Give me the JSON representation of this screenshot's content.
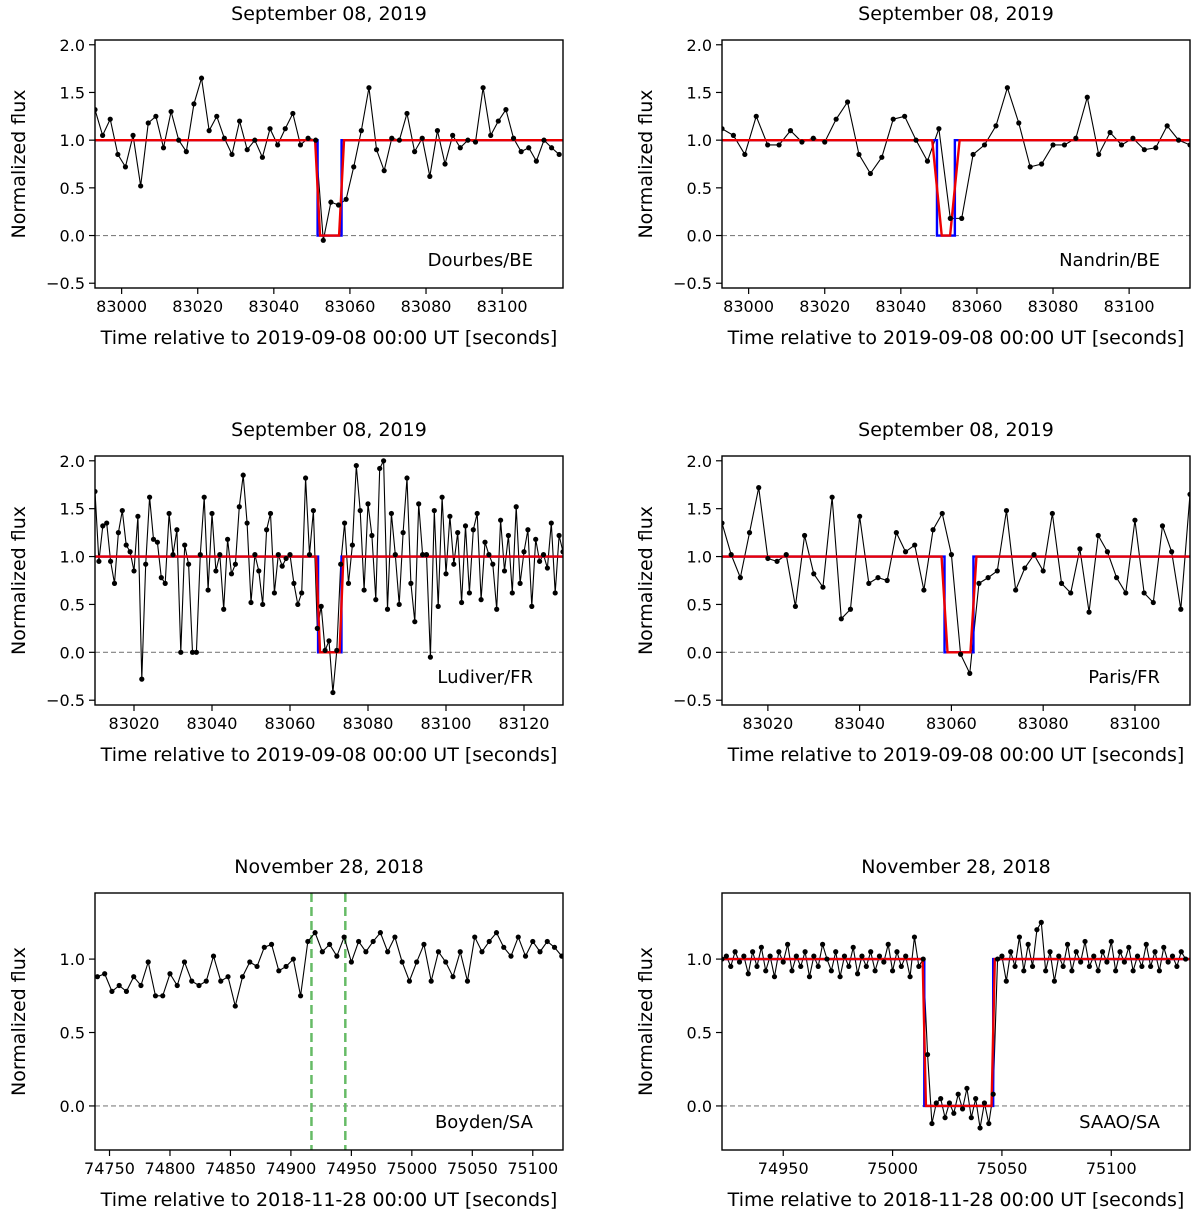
{
  "chart_data": [
    {
      "type": "line",
      "title": "September 08, 2019",
      "xlabel": "Time relative to 2019-09-08 00:00 UT [seconds]",
      "ylabel": "Normalized flux",
      "site": "Dourbes/BE",
      "xlim": [
        82993,
        83116
      ],
      "ylim": [
        -0.55,
        2.05
      ],
      "xticks": [
        83000,
        83020,
        83040,
        83060,
        83080,
        83100
      ],
      "yticks": [
        -0.5,
        0.0,
        0.5,
        1.0,
        1.5,
        2.0
      ],
      "ytick_format": "1",
      "event": [
        83051.5,
        83057.8
      ],
      "model_ingress": 1.3,
      "observations": {
        "x": [
          82993,
          82995,
          82997,
          82999,
          83001,
          83003,
          83005,
          83007,
          83009,
          83011,
          83013,
          83015,
          83017,
          83019,
          83021,
          83023,
          83025,
          83027,
          83029,
          83031,
          83033,
          83035,
          83037,
          83039,
          83041,
          83043,
          83045,
          83047,
          83049,
          83051,
          83053,
          83055,
          83057,
          83059,
          83061,
          83063,
          83065,
          83067,
          83069,
          83071,
          83073,
          83075,
          83077,
          83079,
          83081,
          83083,
          83085,
          83087,
          83089,
          83091,
          83093,
          83095,
          83097,
          83099,
          83101,
          83103,
          83105,
          83107,
          83109,
          83111,
          83113,
          83115
        ],
        "y": [
          1.32,
          1.05,
          1.22,
          0.85,
          0.72,
          1.05,
          0.52,
          1.18,
          1.25,
          0.92,
          1.3,
          1.0,
          0.88,
          1.38,
          1.65,
          1.1,
          1.25,
          1.02,
          0.85,
          1.2,
          0.9,
          1.0,
          0.82,
          1.12,
          0.95,
          1.12,
          1.28,
          0.95,
          1.02,
          1.0,
          -0.05,
          0.35,
          0.32,
          0.38,
          0.72,
          1.1,
          1.55,
          0.9,
          0.68,
          1.02,
          1.0,
          1.28,
          0.88,
          1.02,
          0.62,
          1.1,
          0.75,
          1.05,
          0.92,
          1.0,
          0.98,
          1.55,
          1.05,
          1.2,
          1.32,
          1.02,
          0.88,
          0.92,
          0.78,
          1.0,
          0.92,
          0.85
        ]
      }
    },
    {
      "type": "line",
      "title": "September 08, 2019",
      "xlabel": "Time relative to 2019-09-08 00:00 UT [seconds]",
      "ylabel": "Normalized flux",
      "site": "Nandrin/BE",
      "xlim": [
        82993,
        83116
      ],
      "ylim": [
        -0.55,
        2.05
      ],
      "xticks": [
        83000,
        83020,
        83040,
        83060,
        83080,
        83100
      ],
      "yticks": [
        -0.5,
        0.0,
        0.5,
        1.0,
        1.5,
        2.0
      ],
      "ytick_format": "1",
      "event": [
        83049.5,
        83054.2
      ],
      "model_ingress": 2.5,
      "observations": {
        "x": [
          82993,
          82996,
          82999,
          83002,
          83005,
          83008,
          83011,
          83014,
          83017,
          83020,
          83023,
          83026,
          83029,
          83032,
          83035,
          83038,
          83041,
          83044,
          83047,
          83050,
          83053,
          83056,
          83059,
          83062,
          83065,
          83068,
          83071,
          83074,
          83077,
          83080,
          83083,
          83086,
          83089,
          83092,
          83095,
          83098,
          83101,
          83104,
          83107,
          83110,
          83113,
          83116
        ],
        "y": [
          1.12,
          1.05,
          0.85,
          1.25,
          0.95,
          0.95,
          1.1,
          0.98,
          1.02,
          0.98,
          1.22,
          1.4,
          0.85,
          0.65,
          0.82,
          1.22,
          1.25,
          1.0,
          0.78,
          1.12,
          0.18,
          0.18,
          0.85,
          0.95,
          1.15,
          1.55,
          1.18,
          0.72,
          0.75,
          0.95,
          0.95,
          1.02,
          1.45,
          0.85,
          1.08,
          0.95,
          1.02,
          0.9,
          0.92,
          1.15,
          1.0,
          0.95
        ]
      }
    },
    {
      "type": "line",
      "title": "September 08, 2019",
      "xlabel": "Time relative to 2019-09-08 00:00 UT [seconds]",
      "ylabel": "Normalized flux",
      "site": "Ludiver/FR",
      "xlim": [
        83010,
        83130
      ],
      "ylim": [
        -0.55,
        2.05
      ],
      "xticks": [
        83020,
        83040,
        83060,
        83080,
        83100,
        83120
      ],
      "yticks": [
        -0.5,
        0.0,
        0.5,
        1.0,
        1.5,
        2.0
      ],
      "ytick_format": "1",
      "event": [
        83067.2,
        83073.2
      ],
      "model_ingress": 1.0,
      "observations": {
        "x": [
          83010,
          83011,
          83012,
          83013,
          83014,
          83015,
          83016,
          83017,
          83018,
          83019,
          83020,
          83021,
          83022,
          83023,
          83024,
          83025,
          83026,
          83027,
          83028,
          83029,
          83030,
          83031,
          83032,
          83033,
          83034,
          83035,
          83036,
          83037,
          83038,
          83039,
          83040,
          83041,
          83042,
          83043,
          83044,
          83045,
          83046,
          83047,
          83048,
          83049,
          83050,
          83051,
          83052,
          83053,
          83054,
          83055,
          83056,
          83057,
          83058,
          83059,
          83060,
          83061,
          83062,
          83063,
          83064,
          83065,
          83066,
          83067,
          83068,
          83069,
          83070,
          83071,
          83072,
          83073,
          83074,
          83075,
          83076,
          83077,
          83078,
          83079,
          83080,
          83081,
          83082,
          83083,
          83084,
          83085,
          83086,
          83087,
          83088,
          83089,
          83090,
          83091,
          83092,
          83093,
          83094,
          83095,
          83096,
          83097,
          83098,
          83099,
          83100,
          83101,
          83102,
          83103,
          83104,
          83105,
          83106,
          83107,
          83108,
          83109,
          83110,
          83111,
          83112,
          83113,
          83114,
          83115,
          83116,
          83117,
          83118,
          83119,
          83120,
          83121,
          83122,
          83123,
          83124,
          83125,
          83126,
          83127,
          83128,
          83129,
          83130
        ],
        "y": [
          1.68,
          0.95,
          1.32,
          1.35,
          0.95,
          0.72,
          1.25,
          1.48,
          1.12,
          1.05,
          0.85,
          1.42,
          -0.28,
          0.92,
          1.62,
          1.18,
          1.15,
          0.78,
          0.72,
          1.45,
          1.02,
          1.28,
          0.0,
          1.12,
          0.92,
          0.0,
          0.0,
          1.02,
          1.62,
          0.65,
          1.45,
          0.85,
          1.02,
          0.45,
          1.18,
          0.82,
          0.92,
          1.52,
          1.85,
          1.35,
          0.52,
          1.02,
          0.85,
          0.5,
          1.28,
          1.45,
          0.62,
          1.02,
          0.9,
          0.98,
          1.02,
          0.72,
          0.5,
          0.62,
          1.82,
          1.02,
          1.48,
          0.25,
          0.48,
          0.02,
          0.12,
          -0.42,
          0.02,
          0.92,
          1.35,
          0.72,
          1.12,
          1.95,
          1.48,
          0.65,
          1.55,
          1.22,
          0.55,
          1.92,
          2.0,
          0.45,
          1.45,
          1.02,
          0.5,
          1.25,
          1.82,
          0.72,
          0.32,
          1.55,
          1.02,
          1.02,
          -0.05,
          1.48,
          0.48,
          1.62,
          0.82,
          1.42,
          0.92,
          1.25,
          0.52,
          1.32,
          0.62,
          1.28,
          1.45,
          0.55,
          1.15,
          1.02,
          0.92,
          0.45,
          1.38,
          0.85,
          1.22,
          0.62,
          1.52,
          0.72,
          1.05,
          1.28,
          0.48,
          1.18,
          0.95,
          1.02,
          0.88,
          1.35,
          0.62,
          1.22,
          1.05
        ]
      }
    },
    {
      "type": "line",
      "title": "September 08, 2019",
      "xlabel": "Time relative to 2019-09-08 00:00 UT [seconds]",
      "ylabel": "Normalized flux",
      "site": "Paris/FR",
      "xlim": [
        83010,
        83112
      ],
      "ylim": [
        -0.55,
        2.05
      ],
      "xticks": [
        83020,
        83040,
        83060,
        83080,
        83100
      ],
      "yticks": [
        -0.5,
        0.0,
        0.5,
        1.0,
        1.5,
        2.0
      ],
      "ytick_format": "1",
      "event": [
        83058.5,
        83064.8
      ],
      "model_ingress": 1.3,
      "observations": {
        "x": [
          83010,
          83012,
          83014,
          83016,
          83018,
          83020,
          83022,
          83024,
          83026,
          83028,
          83030,
          83032,
          83034,
          83036,
          83038,
          83040,
          83042,
          83044,
          83046,
          83048,
          83050,
          83052,
          83054,
          83056,
          83058,
          83060,
          83062,
          83064,
          83066,
          83068,
          83070,
          83072,
          83074,
          83076,
          83078,
          83080,
          83082,
          83084,
          83086,
          83088,
          83090,
          83092,
          83094,
          83096,
          83098,
          83100,
          83102,
          83104,
          83106,
          83108,
          83110,
          83112
        ],
        "y": [
          1.35,
          1.02,
          0.78,
          1.25,
          1.72,
          0.98,
          0.95,
          1.02,
          0.48,
          1.22,
          0.82,
          0.68,
          1.62,
          0.35,
          0.45,
          1.42,
          0.72,
          0.78,
          0.75,
          1.25,
          1.05,
          1.12,
          0.65,
          1.28,
          1.45,
          1.02,
          -0.02,
          -0.22,
          0.72,
          0.78,
          0.85,
          1.48,
          0.65,
          0.88,
          1.02,
          0.85,
          1.45,
          0.72,
          0.62,
          1.08,
          0.42,
          1.22,
          1.05,
          0.78,
          0.62,
          1.38,
          0.62,
          0.52,
          1.32,
          1.05,
          0.45,
          1.65
        ]
      }
    },
    {
      "type": "line",
      "title": "November 28, 2018",
      "xlabel": "Time relative to 2018-11-28 00:00 UT [seconds]",
      "ylabel": "Normalized flux",
      "site": "Boyden/SA",
      "xlim": [
        74738,
        75125
      ],
      "ylim": [
        -0.3,
        1.45
      ],
      "xticks": [
        74750,
        74800,
        74850,
        74900,
        74950,
        75000,
        75050,
        75100
      ],
      "yticks": [
        0.0,
        0.5,
        1.0
      ],
      "ytick_format": "1",
      "model": false,
      "vlines": [
        74917,
        74945
      ],
      "observations": {
        "x": [
          74740,
          74746,
          74752,
          74758,
          74764,
          74770,
          74776,
          74782,
          74788,
          74794,
          74800,
          74806,
          74812,
          74818,
          74824,
          74830,
          74836,
          74842,
          74848,
          74854,
          74860,
          74866,
          74872,
          74878,
          74884,
          74890,
          74896,
          74902,
          74908,
          74914,
          74920,
          74926,
          74932,
          74938,
          74944,
          74950,
          74956,
          74962,
          74968,
          74974,
          74980,
          74986,
          74992,
          74998,
          75004,
          75010,
          75016,
          75022,
          75028,
          75034,
          75040,
          75046,
          75052,
          75058,
          75064,
          75070,
          75076,
          75082,
          75088,
          75094,
          75100,
          75106,
          75112,
          75118,
          75124
        ],
        "y": [
          0.88,
          0.9,
          0.78,
          0.82,
          0.78,
          0.88,
          0.82,
          0.98,
          0.75,
          0.75,
          0.9,
          0.82,
          0.98,
          0.85,
          0.82,
          0.85,
          1.02,
          0.85,
          0.88,
          0.68,
          0.88,
          0.98,
          0.95,
          1.08,
          1.1,
          0.92,
          0.95,
          1.0,
          0.75,
          1.12,
          1.18,
          1.05,
          1.1,
          1.02,
          1.15,
          0.98,
          1.12,
          1.05,
          1.12,
          1.18,
          1.05,
          1.15,
          0.98,
          0.85,
          0.98,
          1.1,
          0.85,
          1.05,
          0.98,
          0.88,
          1.05,
          0.85,
          1.15,
          1.05,
          1.12,
          1.18,
          1.08,
          1.02,
          1.15,
          1.02,
          1.12,
          1.05,
          1.12,
          1.08,
          1.02
        ]
      }
    },
    {
      "type": "line",
      "title": "November 28, 2018",
      "xlabel": "Time relative to 2018-11-28 00:00 UT [seconds]",
      "ylabel": "Normalized flux",
      "site": "SAAO/SA",
      "xlim": [
        74922,
        75136
      ],
      "ylim": [
        -0.3,
        1.45
      ],
      "xticks": [
        74950,
        75000,
        75050,
        75100
      ],
      "yticks": [
        0.0,
        0.5,
        1.0
      ],
      "ytick_format": "1",
      "event": [
        75014.5,
        75046
      ],
      "model_ingress": 1.5,
      "observations": {
        "x": [
          74922,
          74924,
          74926,
          74928,
          74930,
          74932,
          74934,
          74936,
          74938,
          74940,
          74942,
          74944,
          74946,
          74948,
          74950,
          74952,
          74954,
          74956,
          74958,
          74960,
          74962,
          74964,
          74966,
          74968,
          74970,
          74972,
          74974,
          74976,
          74978,
          74980,
          74982,
          74984,
          74986,
          74988,
          74990,
          74992,
          74994,
          74996,
          74998,
          75000,
          75002,
          75004,
          75006,
          75008,
          75010,
          75012,
          75014,
          75016,
          75018,
          75020,
          75022,
          75024,
          75026,
          75028,
          75030,
          75032,
          75034,
          75036,
          75038,
          75040,
          75042,
          75044,
          75046,
          75048,
          75050,
          75052,
          75054,
          75056,
          75058,
          75060,
          75062,
          75064,
          75066,
          75068,
          75070,
          75072,
          75074,
          75076,
          75078,
          75080,
          75082,
          75084,
          75086,
          75088,
          75090,
          75092,
          75094,
          75096,
          75098,
          75100,
          75102,
          75104,
          75106,
          75108,
          75110,
          75112,
          75114,
          75116,
          75118,
          75120,
          75122,
          75124,
          75126,
          75128,
          75130,
          75132,
          75134
        ],
        "y": [
          1.0,
          1.02,
          0.95,
          1.05,
          0.98,
          1.02,
          0.9,
          1.05,
          0.95,
          1.08,
          0.92,
          1.02,
          0.88,
          1.05,
          0.98,
          1.1,
          0.92,
          1.02,
          0.95,
          1.05,
          0.88,
          1.02,
          0.95,
          1.1,
          1.0,
          0.92,
          1.05,
          0.88,
          1.02,
          0.95,
          1.08,
          0.9,
          1.02,
          0.95,
          1.05,
          0.92,
          1.02,
          0.98,
          1.1,
          0.92,
          1.05,
          0.95,
          1.02,
          0.88,
          1.15,
          0.95,
          1.0,
          0.35,
          -0.12,
          0.02,
          0.05,
          -0.08,
          0.02,
          -0.05,
          0.08,
          -0.02,
          0.12,
          -0.08,
          0.05,
          -0.15,
          0.02,
          -0.12,
          0.08,
          1.0,
          1.02,
          0.85,
          1.05,
          0.95,
          1.15,
          0.92,
          1.1,
          0.95,
          1.2,
          1.25,
          0.92,
          1.05,
          0.85,
          1.02,
          0.95,
          1.1,
          0.92,
          1.05,
          0.98,
          1.12,
          0.95,
          1.02,
          0.92,
          1.05,
          0.98,
          1.12,
          0.92,
          1.05,
          0.98,
          1.08,
          0.92,
          1.02,
          0.95,
          1.1,
          0.95,
          1.05,
          0.92,
          1.08,
          0.98,
          1.02,
          0.95,
          1.05,
          1.0
        ]
      }
    }
  ],
  "colors": {
    "observed": "#000000",
    "square_model": "#0000ff",
    "smooth_model": "#ee0000",
    "zero_line": "#808080",
    "event_marker": "#66bb66"
  }
}
